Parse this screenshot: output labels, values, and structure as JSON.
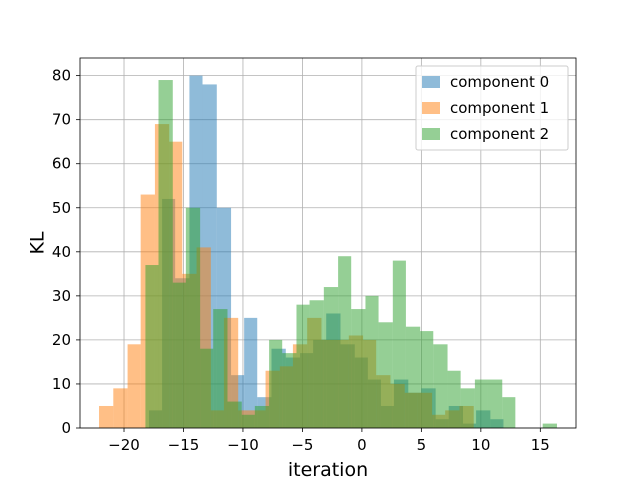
{
  "chart_data": {
    "type": "bar",
    "subtype": "overlaid-histogram",
    "title": "",
    "xlabel": "iteration",
    "ylabel": "KL",
    "xlim": [
      -23.7,
      18.0
    ],
    "ylim": [
      0,
      84
    ],
    "xticks": [
      -20,
      -15,
      -10,
      -5,
      0,
      5,
      10,
      15
    ],
    "yticks": [
      0,
      10,
      20,
      30,
      40,
      50,
      60,
      70,
      80
    ],
    "grid": true,
    "legend_position": "top-right",
    "alpha": 0.5,
    "series": [
      {
        "name": "component 0",
        "color": "#1f77b4",
        "bins": [
          [
            -17.9,
            -16.8,
            4
          ],
          [
            -16.8,
            -15.7,
            52
          ],
          [
            -15.7,
            -14.5,
            34
          ],
          [
            -14.5,
            -13.4,
            80
          ],
          [
            -13.4,
            -12.2,
            78
          ],
          [
            -12.2,
            -11.0,
            50
          ],
          [
            -11.0,
            -9.9,
            12
          ],
          [
            -9.9,
            -8.8,
            25
          ],
          [
            -8.8,
            -7.6,
            7
          ],
          [
            -7.6,
            -6.4,
            18
          ],
          [
            -6.4,
            -5.2,
            16
          ],
          [
            -5.2,
            -4.1,
            17
          ],
          [
            -4.1,
            -3.0,
            20
          ],
          [
            -3.0,
            -1.8,
            26
          ],
          [
            -1.8,
            -0.6,
            19
          ],
          [
            -0.6,
            0.5,
            16
          ],
          [
            0.5,
            1.6,
            11
          ],
          [
            1.6,
            2.7,
            5
          ],
          [
            2.7,
            3.9,
            11
          ],
          [
            3.9,
            5.0,
            8
          ],
          [
            5.0,
            6.2,
            9
          ],
          [
            6.2,
            7.3,
            2
          ],
          [
            7.3,
            8.5,
            5
          ],
          [
            8.5,
            9.6,
            1
          ],
          [
            9.6,
            10.8,
            4
          ],
          [
            10.8,
            11.9,
            2
          ]
        ]
      },
      {
        "name": "component 1",
        "color": "#ff7f0e",
        "bins": [
          [
            -22.1,
            -20.9,
            5
          ],
          [
            -20.9,
            -19.7,
            9
          ],
          [
            -19.7,
            -18.6,
            19
          ],
          [
            -18.6,
            -17.4,
            53
          ],
          [
            -17.4,
            -16.2,
            69
          ],
          [
            -16.2,
            -15.1,
            65
          ],
          [
            -15.1,
            -13.9,
            35
          ],
          [
            -13.9,
            -12.7,
            41
          ],
          [
            -12.7,
            -11.6,
            4
          ],
          [
            -11.6,
            -10.4,
            25
          ],
          [
            -10.4,
            -9.2,
            4
          ],
          [
            -9.2,
            -8.1,
            4
          ],
          [
            -8.1,
            -6.9,
            13
          ],
          [
            -6.9,
            -5.8,
            14
          ],
          [
            -5.8,
            -4.6,
            19
          ],
          [
            -4.6,
            -3.4,
            25
          ],
          [
            -3.4,
            -2.3,
            20
          ],
          [
            -2.3,
            -1.1,
            20
          ],
          [
            -1.1,
            0.1,
            21
          ],
          [
            0.1,
            1.2,
            20
          ],
          [
            1.2,
            2.4,
            12
          ],
          [
            2.4,
            3.6,
            10
          ],
          [
            3.6,
            4.7,
            8
          ],
          [
            4.7,
            5.9,
            8
          ],
          [
            5.9,
            7.0,
            3
          ],
          [
            7.0,
            8.2,
            4
          ],
          [
            8.2,
            9.4,
            5
          ]
        ]
      },
      {
        "name": "component 2",
        "color": "#2ca02c",
        "bins": [
          [
            -18.2,
            -17.1,
            37
          ],
          [
            -17.1,
            -15.9,
            79
          ],
          [
            -15.9,
            -14.8,
            33
          ],
          [
            -14.8,
            -13.6,
            50
          ],
          [
            -13.6,
            -12.5,
            18
          ],
          [
            -12.5,
            -11.3,
            27
          ],
          [
            -11.3,
            -10.1,
            6
          ],
          [
            -10.1,
            -9.0,
            3
          ],
          [
            -9.0,
            -7.8,
            5
          ],
          [
            -7.8,
            -6.7,
            20
          ],
          [
            -6.7,
            -5.5,
            17
          ],
          [
            -5.5,
            -4.4,
            28
          ],
          [
            -4.4,
            -3.2,
            29
          ],
          [
            -3.2,
            -2.0,
            32
          ],
          [
            -2.0,
            -0.9,
            39
          ],
          [
            -0.9,
            0.3,
            27
          ],
          [
            0.3,
            1.4,
            30
          ],
          [
            1.4,
            2.6,
            24
          ],
          [
            2.6,
            3.7,
            38
          ],
          [
            3.7,
            4.9,
            23
          ],
          [
            4.9,
            6.0,
            22
          ],
          [
            6.0,
            7.2,
            19
          ],
          [
            7.2,
            8.3,
            13
          ],
          [
            8.3,
            9.5,
            9
          ],
          [
            9.5,
            10.6,
            11
          ],
          [
            10.6,
            11.8,
            11
          ],
          [
            11.8,
            12.9,
            7
          ],
          [
            12.9,
            14.1,
            0
          ],
          [
            14.1,
            15.2,
            0
          ],
          [
            15.2,
            16.4,
            1
          ]
        ]
      }
    ]
  }
}
